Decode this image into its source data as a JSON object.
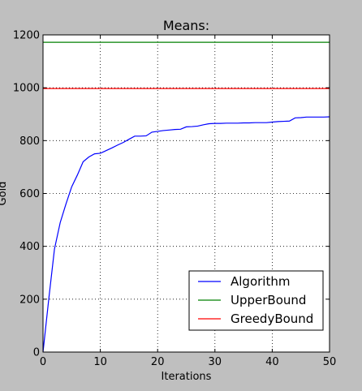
{
  "chart_data": {
    "type": "line",
    "title": "Means:",
    "xlabel": "Iterations",
    "ylabel": "Gold",
    "xlim": [
      0,
      50
    ],
    "ylim": [
      0,
      1200
    ],
    "xticks": [
      0,
      10,
      20,
      30,
      40,
      50
    ],
    "yticks": [
      0,
      200,
      400,
      600,
      800,
      1000,
      1200
    ],
    "grid": true,
    "legend_position": "lower-right",
    "series": [
      {
        "name": "Algorithm",
        "color": "#0000ff",
        "x": [
          0,
          1,
          2,
          3,
          4,
          5,
          6,
          7,
          8,
          9,
          10,
          11,
          12,
          13,
          14,
          15,
          16,
          17,
          18,
          19,
          20,
          21,
          22,
          23,
          24,
          25,
          26,
          27,
          28,
          29,
          30,
          31,
          32,
          33,
          34,
          35,
          36,
          37,
          38,
          39,
          40,
          41,
          42,
          43,
          44,
          45,
          46,
          47,
          48,
          49,
          50
        ],
        "y": [
          0,
          200,
          390,
          490,
          560,
          625,
          670,
          720,
          738,
          750,
          752,
          762,
          772,
          783,
          793,
          805,
          817,
          817,
          818,
          832,
          835,
          838,
          840,
          842,
          843,
          852,
          853,
          855,
          860,
          864,
          865,
          865,
          866,
          866,
          866,
          867,
          867,
          868,
          868,
          868,
          870,
          872,
          873,
          874,
          886,
          887,
          889,
          889,
          889,
          889,
          890
        ]
      },
      {
        "name": "UpperBound",
        "color": "#008000",
        "x": [
          0,
          50
        ],
        "y": [
          1172,
          1172
        ]
      },
      {
        "name": "GreedyBound",
        "color": "#ff0000",
        "x": [
          0,
          50
        ],
        "y": [
          997,
          997
        ]
      }
    ]
  }
}
